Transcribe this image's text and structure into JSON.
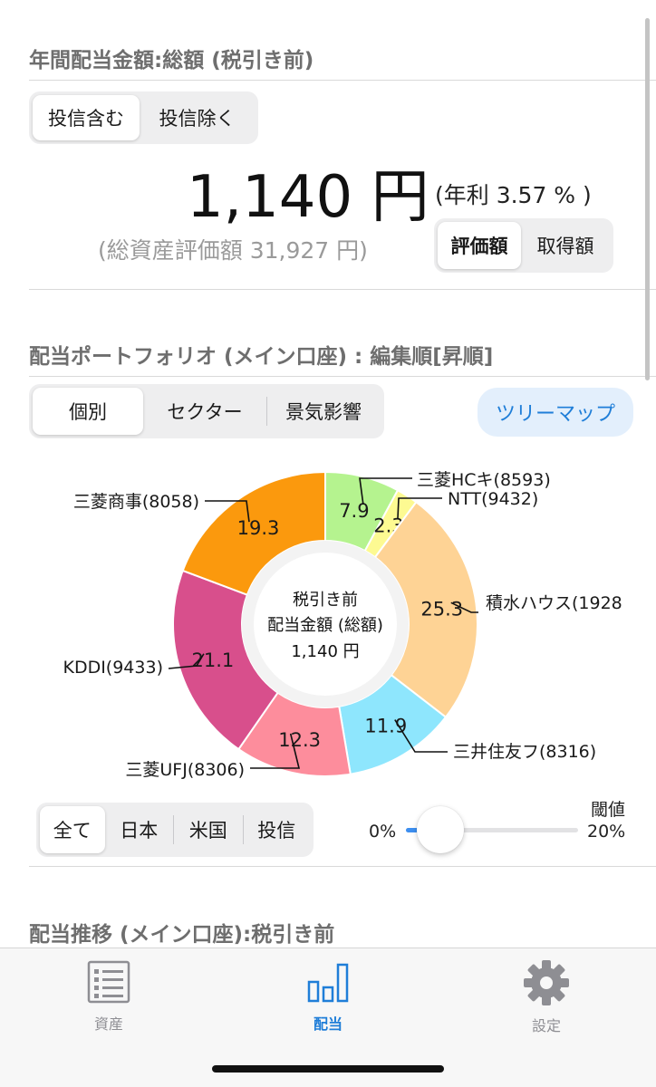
{
  "summary": {
    "title": "年間配当金額:総額 (税引き前)",
    "filter_tabs": [
      "投信含む",
      "投信除く"
    ],
    "amount": "1,140 円",
    "yield_text": "(年利 3.57 % )",
    "total_assets_text": "(総資産評価額 31,927 円)",
    "basis_tabs": [
      "評価額",
      "取得額"
    ]
  },
  "portfolio": {
    "title": "配当ポートフォリオ (メイン口座) : 編集順[昇順]",
    "view_tabs": [
      "個別",
      "セクター",
      "景気影響"
    ],
    "treemap_button": "ツリーマップ",
    "center_label": [
      "税引き前",
      "配当金額 (総額)",
      "1,140 円"
    ],
    "region_tabs": [
      "全て",
      "日本",
      "米国",
      "投信"
    ],
    "threshold_label": "閾値",
    "slider_min_label": "0%",
    "slider_max_label": "20%",
    "slider_value_fraction": 0.0
  },
  "chart_data": {
    "type": "pie",
    "unit": "%",
    "slices": [
      {
        "label": "三菱HCキ(8593)",
        "value": 7.9,
        "color": "#b5f38f"
      },
      {
        "label": "NTT(9432)",
        "value": 2.3,
        "color": "#fdfa92"
      },
      {
        "label": "積水ハウス(1928",
        "value": 25.3,
        "color": "#fed395"
      },
      {
        "label": "三井住友フ(8316)",
        "value": 11.9,
        "color": "#8ee6fd"
      },
      {
        "label": "三菱UFJ(8306)",
        "value": 12.3,
        "color": "#fd8d9c"
      },
      {
        "label": "KDDI(9433)",
        "value": 21.1,
        "color": "#d84f8c"
      },
      {
        "label": "三菱商事(8058)",
        "value": 19.3,
        "color": "#fb990d"
      }
    ]
  },
  "next_section": {
    "title": "配当推移 (メイン口座):税引き前"
  },
  "tabbar": {
    "items": [
      {
        "label": "資産",
        "icon": "list-icon"
      },
      {
        "label": "配当",
        "icon": "bar-chart-icon"
      },
      {
        "label": "設定",
        "icon": "gear-icon"
      }
    ],
    "active_color": "#1f7ed8",
    "inactive_color": "#8e8e93"
  }
}
